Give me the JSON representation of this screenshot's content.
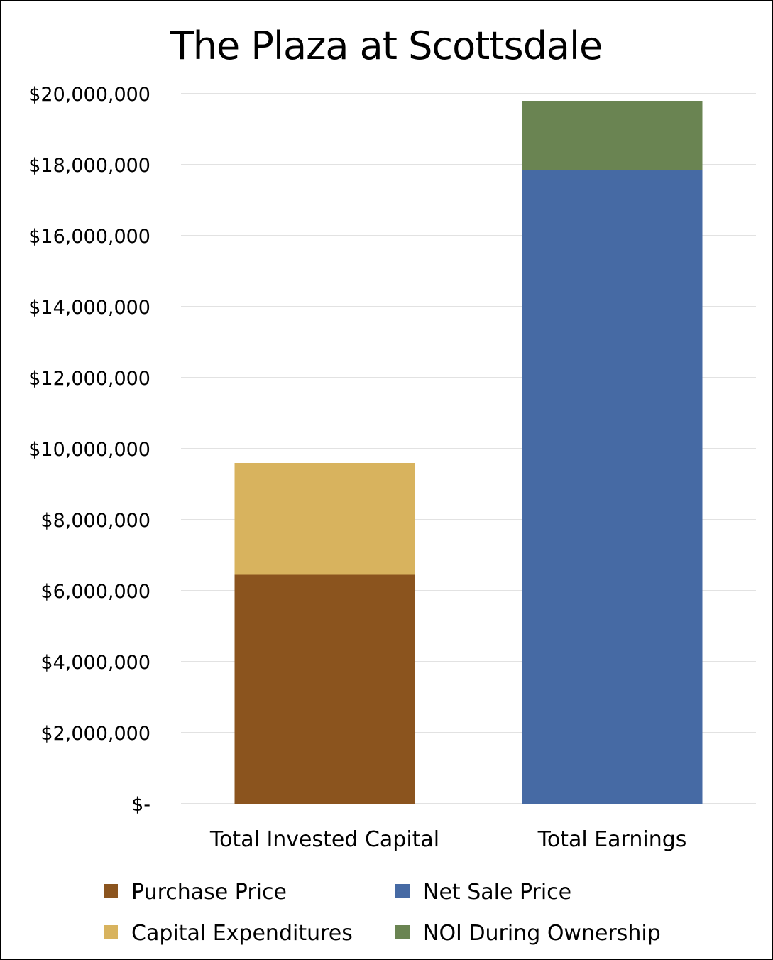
{
  "chart_data": {
    "type": "bar",
    "stacked": true,
    "title": "The Plaza at Scottsdale",
    "xlabel": "",
    "ylabel": "",
    "categories": [
      "Total Invested Capital",
      "Total Earnings"
    ],
    "series": [
      {
        "name": "Purchase Price",
        "values": [
          6450000,
          0
        ],
        "color": "#8b541e"
      },
      {
        "name": "Capital Expenditures",
        "values": [
          3150000,
          0
        ],
        "color": "#d8b35e"
      },
      {
        "name": "Net Sale Price",
        "values": [
          0,
          17850000
        ],
        "color": "#466aa4"
      },
      {
        "name": "NOI During Ownership",
        "values": [
          0,
          1950000
        ],
        "color": "#6a8452"
      }
    ],
    "ylim": [
      0,
      20000000
    ],
    "yticks": [
      0,
      2000000,
      4000000,
      6000000,
      8000000,
      10000000,
      12000000,
      14000000,
      16000000,
      18000000,
      20000000
    ],
    "ytick_labels": [
      "$-",
      "$2,000,000",
      "$4,000,000",
      "$6,000,000",
      "$8,000,000",
      "$10,000,000",
      "$12,000,000",
      "$14,000,000",
      "$16,000,000",
      "$18,000,000",
      "$20,000,000"
    ],
    "grid": true,
    "legend_position": "bottom",
    "legend_order": [
      "Purchase Price",
      "Net Sale Price",
      "Capital Expenditures",
      "NOI During Ownership"
    ],
    "gridline_color": "#d9d9d9"
  }
}
